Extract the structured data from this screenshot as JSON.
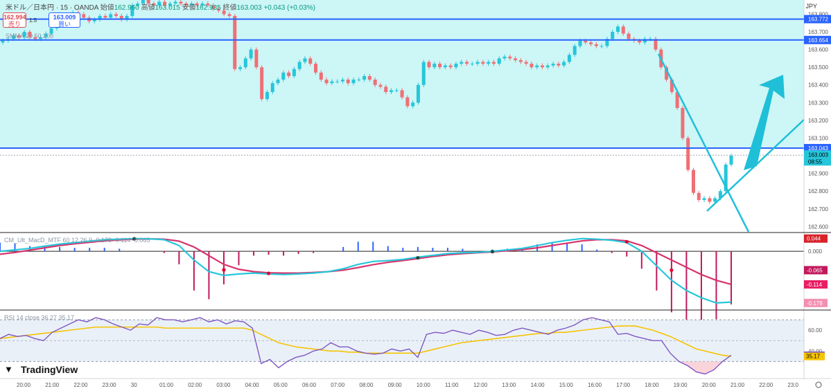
{
  "header": {
    "symbol": "米ドル／日本円 · 15 · OANDA",
    "open_label": "始値",
    "open": "162.960",
    "high_label": "高値",
    "high": "163.015",
    "low_label": "安値",
    "low": "162.935",
    "close_label": "終値",
    "close": "163.003",
    "change": "+0.043 (+0.03%)"
  },
  "currency": "JPY",
  "trade": {
    "sell_price": "162.994",
    "sell_label": "売り",
    "spread": "1.5",
    "buy_price": "163.009",
    "buy_label": "買い"
  },
  "brand": "TradingView",
  "colors": {
    "band": "#cdf6f6",
    "up": "#26c6da",
    "down": "#ef6f76",
    "line_blue": "#2962ff",
    "trend": "#1fbfd8",
    "macd": "#26c6da",
    "signal": "#d6336c",
    "hist_pos": "#2962ff",
    "hist_neg": "#c2185b",
    "rsi": "#7e57c2",
    "rsi_ma": "#f5c400"
  },
  "chart_data": [
    {
      "type": "candlestick",
      "overlay_label": "SMMA 20 50 200",
      "x_ticks": [
        "20:00",
        "21:00",
        "22:00",
        "23:00",
        "30",
        "01:00",
        "02:00",
        "03:00",
        "04:00",
        "05:00",
        "06:00",
        "07:00",
        "08:00",
        "09:00",
        "10:00",
        "11:00",
        "12:00",
        "13:00",
        "14:00",
        "15:00",
        "16:00",
        "17:00",
        "18:00",
        "19:00",
        "20:00",
        "21:00",
        "22:00",
        "23:0"
      ],
      "y_ticks": [
        "163.800",
        "163.700",
        "163.600",
        "163.500",
        "163.400",
        "163.300",
        "163.200",
        "163.100",
        "162.900",
        "162.800",
        "162.700",
        "162.600"
      ],
      "ylim": [
        162.57,
        163.88
      ],
      "closes": [
        163.65,
        163.66,
        163.68,
        163.67,
        163.7,
        163.67,
        163.66,
        163.67,
        163.69,
        163.72,
        163.76,
        163.78,
        163.79,
        163.81,
        163.8,
        163.78,
        163.76,
        163.77,
        163.79,
        163.78,
        163.8,
        163.79,
        163.77,
        163.79,
        163.85,
        163.86,
        163.88,
        163.86,
        163.85,
        163.87,
        163.85,
        163.86,
        163.87,
        163.86,
        163.85,
        163.86,
        163.85,
        163.86,
        163.85,
        163.83,
        163.82,
        163.8,
        163.79,
        163.49,
        163.5,
        163.55,
        163.6,
        163.5,
        163.32,
        163.36,
        163.41,
        163.43,
        163.47,
        163.45,
        163.49,
        163.53,
        163.55,
        163.52,
        163.47,
        163.43,
        163.41,
        163.42,
        163.42,
        163.43,
        163.41,
        163.43,
        163.43,
        163.45,
        163.43,
        163.4,
        163.39,
        163.36,
        163.37,
        163.37,
        163.33,
        163.28,
        163.3,
        163.4,
        163.53,
        163.5,
        163.52,
        163.5,
        163.51,
        163.5,
        163.52,
        163.53,
        163.52,
        163.52,
        163.53,
        163.52,
        163.53,
        163.52,
        163.55,
        163.56,
        163.55,
        163.54,
        163.53,
        163.52,
        163.5,
        163.51,
        163.5,
        163.51,
        163.52,
        163.51,
        163.53,
        163.57,
        163.62,
        163.65,
        163.64,
        163.63,
        163.62,
        163.62,
        163.66,
        163.7,
        163.73,
        163.69,
        163.66,
        163.65,
        163.64,
        163.66,
        163.66,
        163.6,
        163.5,
        163.43,
        163.36,
        163.27,
        163.1,
        162.92,
        162.79,
        162.75,
        162.76,
        162.74,
        162.76,
        162.8,
        162.95,
        163.0
      ],
      "horizontal_levels": [
        {
          "value": 163.772,
          "label": "163.772"
        },
        {
          "value": 163.654,
          "label": "163.654"
        },
        {
          "value": 163.043,
          "label": "163.043"
        }
      ],
      "last_price": {
        "value": 163.003,
        "label": "163.003",
        "countdown": "08:55"
      }
    },
    {
      "type": "macd",
      "label": "CM_Ult_MacD_MTF 60 12 26 9",
      "values_label": [
        "-0.178",
        "-0.114",
        "-0.065"
      ],
      "ylim": [
        -0.2,
        0.06
      ],
      "y_tick": "0.000",
      "tags": [
        {
          "value": 0.044,
          "label": "0.044",
          "color": "#d8222a"
        },
        {
          "value": -0.065,
          "label": "-0.065",
          "color": "#c2185b"
        },
        {
          "value": -0.114,
          "label": "-0.114",
          "color": "#e91e63"
        },
        {
          "value": -0.178,
          "label": "-0.178",
          "color": "#f48fb1"
        }
      ],
      "macd_line": [
        0.0,
        0.005,
        0.01,
        0.018,
        0.025,
        0.03,
        0.035,
        0.04,
        0.042,
        0.044,
        0.043,
        0.04,
        0.02,
        -0.03,
        -0.07,
        -0.083,
        -0.078,
        -0.075,
        -0.078,
        -0.08,
        -0.078,
        -0.075,
        -0.07,
        -0.06,
        -0.045,
        -0.035,
        -0.032,
        -0.028,
        -0.02,
        -0.014,
        -0.008,
        -0.005,
        -0.004,
        0.0,
        0.005,
        0.01,
        0.02,
        0.03,
        0.038,
        0.044,
        0.042,
        0.038,
        0.03,
        0.0,
        -0.05,
        -0.1,
        -0.135,
        -0.16,
        -0.178,
        -0.175
      ],
      "signal_line": [
        -0.01,
        -0.004,
        0.004,
        0.012,
        0.02,
        0.026,
        0.031,
        0.036,
        0.039,
        0.042,
        0.043,
        0.042,
        0.035,
        0.015,
        -0.015,
        -0.045,
        -0.062,
        -0.07,
        -0.074,
        -0.075,
        -0.075,
        -0.073,
        -0.07,
        -0.065,
        -0.056,
        -0.046,
        -0.038,
        -0.032,
        -0.025,
        -0.018,
        -0.012,
        -0.008,
        -0.005,
        -0.002,
        0.002,
        0.006,
        0.012,
        0.02,
        0.028,
        0.036,
        0.04,
        0.04,
        0.036,
        0.02,
        -0.005,
        -0.03,
        -0.055,
        -0.08,
        -0.1,
        -0.114
      ]
    },
    {
      "type": "rsi",
      "label": "RSI 14 close",
      "value_rsi": "36.27",
      "value_ma": "35.17",
      "y_ticks": [
        "60.00",
        "40.00"
      ],
      "ylim": [
        15,
        78
      ],
      "upper": 70,
      "lower": 30,
      "tags": [
        {
          "value": 36.27,
          "label": "36.27",
          "color": "#7e57c2"
        },
        {
          "value": 35.17,
          "label": "35.17",
          "color": "#f5c400"
        }
      ],
      "rsi": [
        52,
        56,
        54,
        55,
        52,
        50,
        58,
        62,
        66,
        70,
        68,
        72,
        70,
        66,
        63,
        60,
        66,
        65,
        72,
        70,
        70,
        68,
        70,
        72,
        68,
        70,
        66,
        69,
        68,
        62,
        28,
        32,
        24,
        30,
        34,
        36,
        40,
        42,
        48,
        44,
        44,
        40,
        38,
        37,
        38,
        42,
        40,
        42,
        34,
        56,
        58,
        57,
        60,
        58,
        56,
        60,
        58,
        55,
        56,
        60,
        62,
        60,
        58,
        56,
        60,
        62,
        65,
        70,
        72,
        70,
        68,
        56,
        57,
        54,
        52,
        50,
        50,
        38,
        30,
        26,
        20,
        18,
        22,
        30,
        36
      ],
      "rsi_ma": [
        52,
        53,
        54,
        55,
        56,
        57,
        58,
        59,
        60,
        61,
        62,
        63,
        63,
        63,
        63,
        63,
        63,
        63,
        63,
        62,
        62,
        62,
        62,
        62,
        62,
        62,
        62,
        62,
        62,
        60,
        56,
        52,
        48,
        46,
        44,
        43,
        42,
        41,
        40,
        40,
        39,
        39,
        38,
        38,
        38,
        38,
        38,
        38,
        38,
        40,
        42,
        44,
        46,
        48,
        49,
        50,
        51,
        52,
        53,
        54,
        55,
        56,
        57,
        57,
        58,
        58,
        59,
        60,
        61,
        62,
        63,
        64,
        64,
        64,
        62,
        60,
        57,
        54,
        50,
        46,
        42,
        40,
        38,
        36,
        35
      ]
    }
  ]
}
